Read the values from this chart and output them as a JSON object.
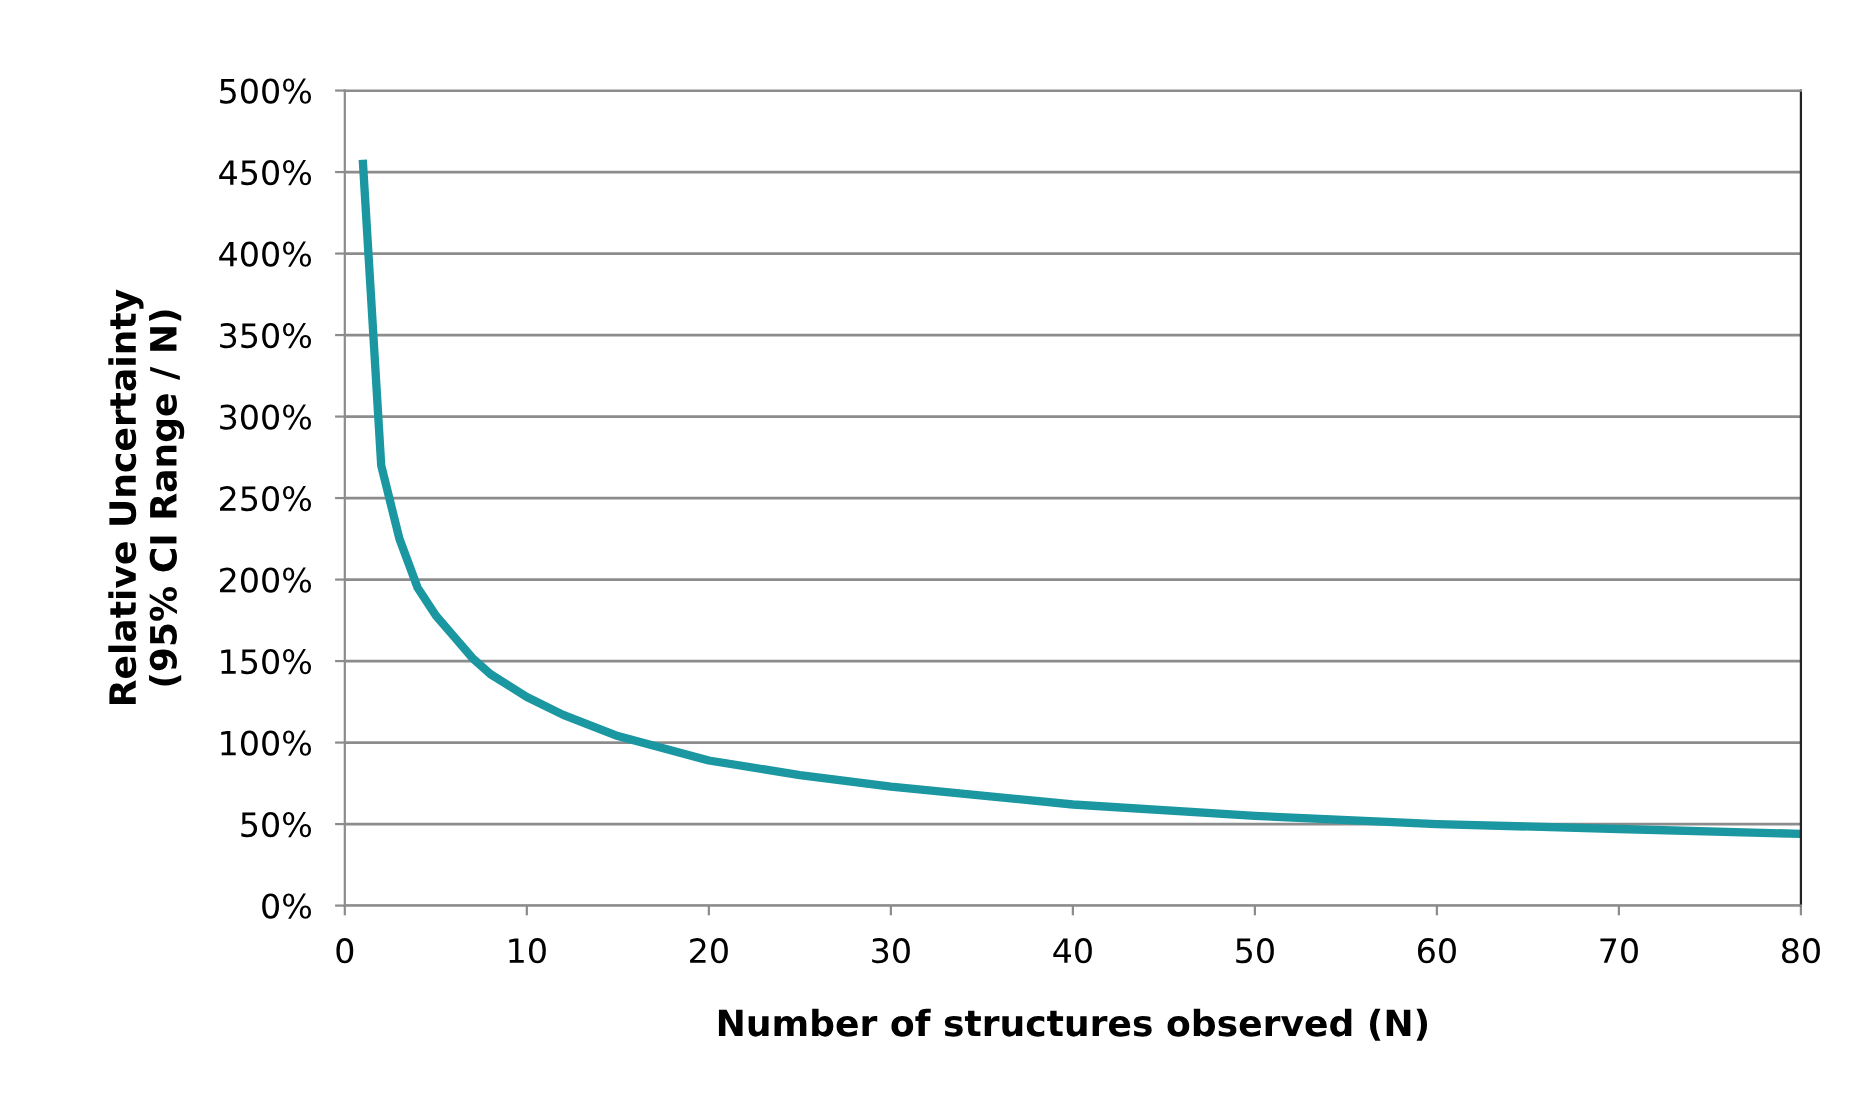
{
  "chart_data": {
    "type": "line",
    "xlabel": "Number of structures observed (N)",
    "ylabel": "Relative Uncertainty\n(95% CI Range / N)",
    "x": [
      1,
      2,
      3,
      4,
      5,
      6,
      7,
      8,
      10,
      12,
      15,
      20,
      25,
      30,
      40,
      50,
      60,
      70,
      80
    ],
    "series": [
      {
        "color": "#1a97a0",
        "values": [
          455,
          270,
          225,
          195,
          178,
          165,
          152,
          142,
          128,
          117,
          104,
          89,
          80,
          73,
          62,
          55,
          50,
          47,
          44
        ]
      }
    ],
    "xlim": [
      0,
      80
    ],
    "xticks": [
      0,
      10,
      20,
      30,
      40,
      50,
      60,
      70,
      80
    ],
    "ylim": [
      0,
      500
    ],
    "yticks": [
      {
        "value": 0,
        "label": "0%"
      },
      {
        "value": 50,
        "label": "50%"
      },
      {
        "value": 100,
        "label": "100%"
      },
      {
        "value": 150,
        "label": "150%"
      },
      {
        "value": 200,
        "label": "200%"
      },
      {
        "value": 250,
        "label": "250%"
      },
      {
        "value": 300,
        "label": "300%"
      },
      {
        "value": 350,
        "label": "350%"
      },
      {
        "value": 400,
        "label": "400%"
      },
      {
        "value": 450,
        "label": "450%"
      },
      {
        "value": 500,
        "label": "500%"
      }
    ],
    "grid": "y",
    "marker": "none",
    "line_style": "solid"
  }
}
